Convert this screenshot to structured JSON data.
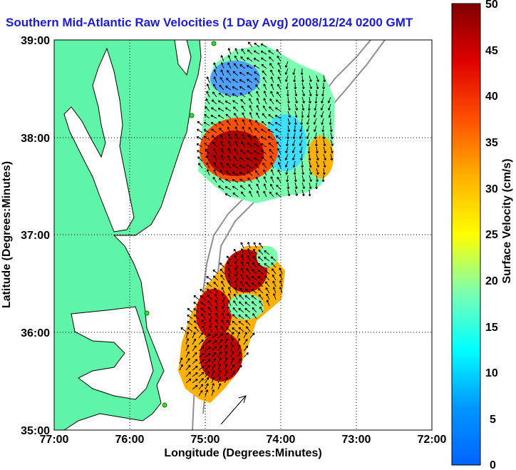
{
  "title": "Southern Mid-Atlantic Raw Velocities (1 Day Avg) 2008/12/24 0200 GMT",
  "map": {
    "x_axis": {
      "label": "Longitude (Degrees:Minutes)",
      "ticks": [
        "77:00",
        "76:00",
        "75:00",
        "74:00",
        "73:00",
        "72:00"
      ],
      "range": [
        -77,
        -72
      ]
    },
    "y_axis": {
      "label": "Latitude (Degrees:Minutes)",
      "ticks": [
        "39:00",
        "38:00",
        "37:00",
        "36:00",
        "35:00"
      ],
      "range": [
        35,
        39
      ]
    },
    "grid": "dotted",
    "land_color": "#5ef5a8",
    "coast_color": "#000000",
    "bathymetry_color": "#909090",
    "sites": [
      {
        "lon": -75.1,
        "lat": 38.96
      },
      {
        "lon": -75.1,
        "lat": 38.2
      },
      {
        "lon": -75.75,
        "lat": 36.2
      },
      {
        "lon": -75.52,
        "lat": 35.22
      }
    ]
  },
  "colorbar": {
    "label": "Surface Velocity (cm/s)",
    "ticks": [
      "50",
      "45",
      "40",
      "35",
      "30",
      "25",
      "20",
      "15",
      "10",
      "5",
      "0"
    ],
    "range": [
      0,
      50
    ],
    "colormap": "jet"
  }
}
